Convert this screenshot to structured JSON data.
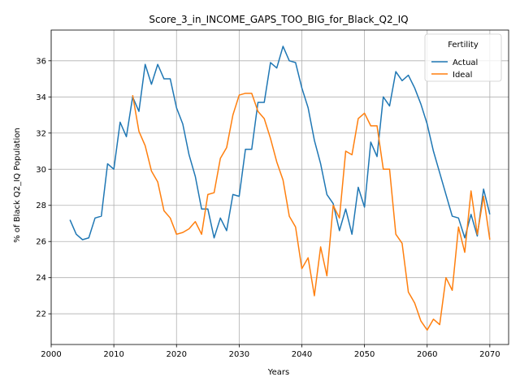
{
  "chart_data": {
    "type": "line",
    "title": "Score_3_in_INCOME_GAPS_TOO_BIG_for_Black_Q2_IQ",
    "xlabel": "Years",
    "ylabel": "% of Black Q2_IQ Population",
    "xlim": [
      2000,
      2073
    ],
    "ylim": [
      20.3,
      37.7
    ],
    "xticks": [
      2000,
      2010,
      2020,
      2030,
      2040,
      2050,
      2060,
      2070
    ],
    "yticks": [
      22,
      24,
      26,
      28,
      30,
      32,
      34,
      36
    ],
    "grid": true,
    "legend": {
      "title": "Fertility",
      "placement": "top-right"
    },
    "x": [
      2003,
      2004,
      2005,
      2006,
      2007,
      2008,
      2009,
      2010,
      2011,
      2012,
      2013,
      2014,
      2015,
      2016,
      2017,
      2018,
      2019,
      2020,
      2021,
      2022,
      2023,
      2024,
      2025,
      2026,
      2027,
      2028,
      2029,
      2030,
      2031,
      2032,
      2033,
      2034,
      2035,
      2036,
      2037,
      2038,
      2039,
      2040,
      2041,
      2042,
      2043,
      2044,
      2045,
      2046,
      2047,
      2048,
      2049,
      2050,
      2051,
      2052,
      2053,
      2054,
      2055,
      2056,
      2057,
      2058,
      2059,
      2060,
      2061,
      2062,
      2063,
      2064,
      2065,
      2066,
      2067,
      2068,
      2069,
      2070
    ],
    "series": [
      {
        "name": "Actual",
        "color": "#1f77b4",
        "values": [
          27.2,
          26.4,
          26.1,
          26.2,
          27.3,
          27.4,
          30.3,
          30.0,
          32.6,
          31.8,
          34.0,
          33.2,
          35.8,
          34.7,
          35.8,
          35.0,
          35.0,
          33.4,
          32.5,
          30.8,
          29.6,
          27.8,
          27.8,
          26.2,
          27.3,
          26.6,
          28.6,
          28.5,
          31.1,
          31.1,
          33.7,
          33.7,
          35.9,
          35.6,
          36.8,
          36.0,
          35.9,
          34.5,
          33.4,
          31.6,
          30.3,
          28.6,
          28.1,
          26.6,
          27.8,
          26.4,
          29.0,
          27.9,
          31.5,
          30.7,
          34.0,
          33.5,
          35.4,
          34.9,
          35.2,
          34.5,
          33.6,
          32.5,
          31.0,
          29.8,
          28.6,
          27.4,
          27.3,
          26.2,
          27.5,
          26.3,
          28.9,
          27.5
        ]
      },
      {
        "name": "Ideal",
        "color": "#ff7f0e",
        "values": [
          null,
          null,
          null,
          null,
          null,
          null,
          null,
          null,
          null,
          null,
          34.1,
          32.1,
          31.3,
          29.9,
          29.3,
          27.7,
          27.3,
          26.4,
          26.5,
          26.7,
          27.1,
          26.4,
          28.6,
          28.7,
          30.6,
          31.2,
          33.0,
          34.1,
          34.2,
          34.2,
          33.2,
          32.8,
          31.7,
          30.4,
          29.4,
          27.4,
          26.8,
          24.5,
          25.1,
          23.0,
          25.7,
          24.1,
          28.0,
          27.3,
          31.0,
          30.8,
          32.8,
          33.1,
          32.4,
          32.4,
          30.0,
          30.0,
          26.4,
          25.9,
          23.2,
          22.6,
          21.6,
          21.1,
          21.7,
          21.4,
          24.0,
          23.3,
          26.8,
          25.4,
          28.8,
          26.4,
          28.5,
          26.1
        ]
      }
    ]
  }
}
